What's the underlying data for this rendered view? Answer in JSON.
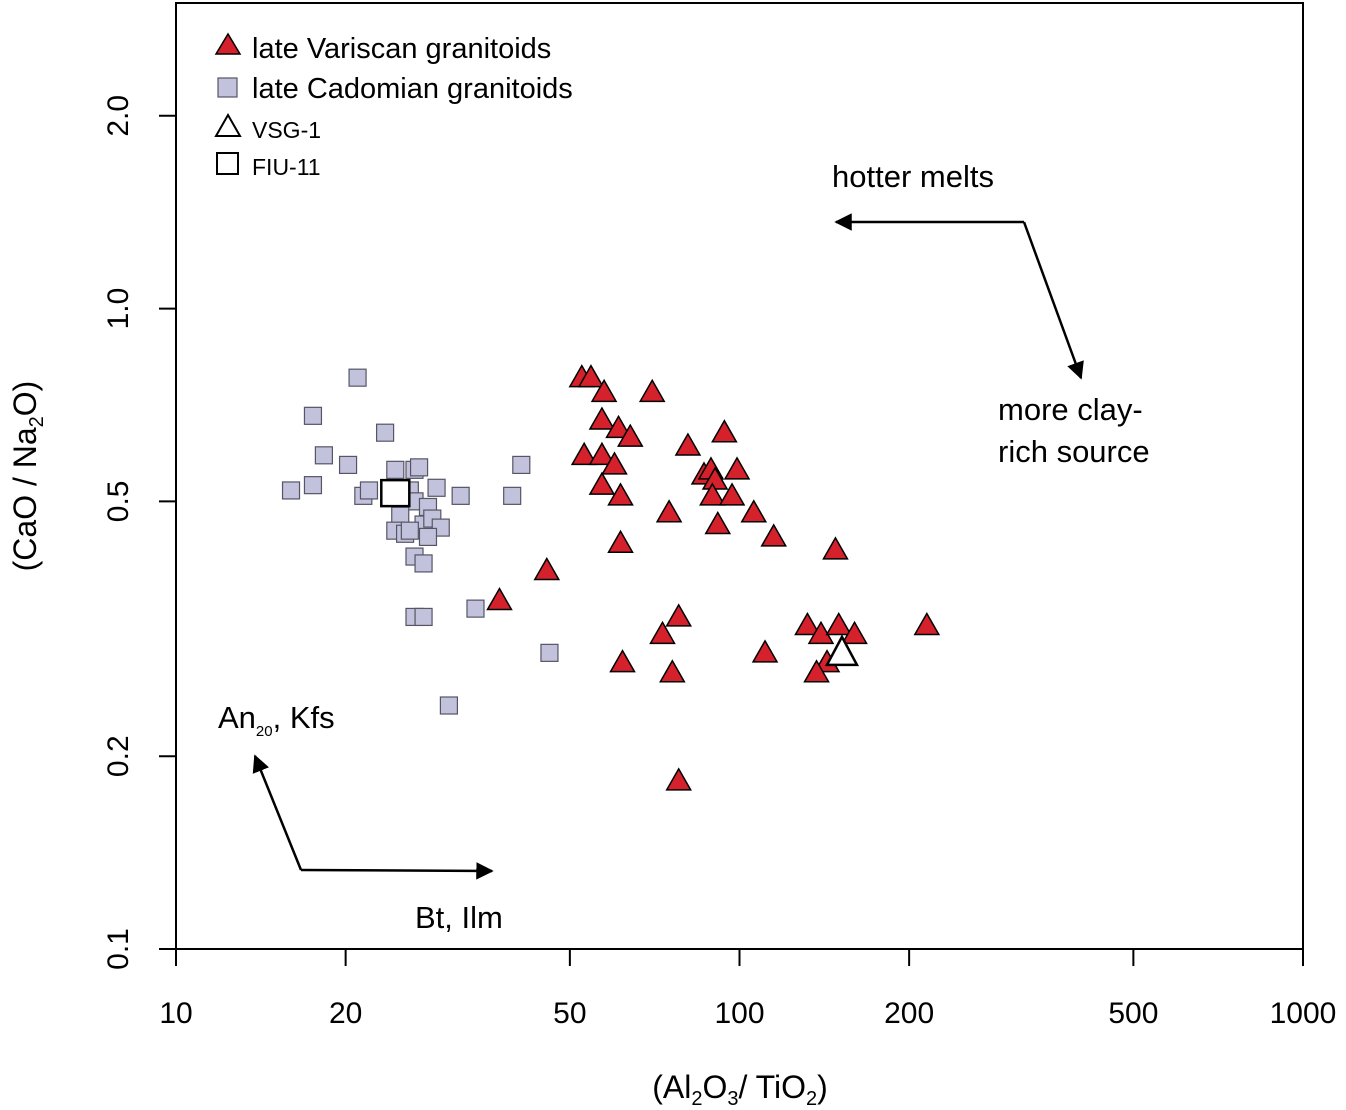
{
  "chart_data": {
    "type": "scatter",
    "xscale": "log",
    "yscale": "log",
    "xlim": [
      10,
      1000
    ],
    "ylim": [
      0.1,
      3.0
    ],
    "x_ticks": [
      {
        "value": 10,
        "label": "10"
      },
      {
        "value": 20,
        "label": "20"
      },
      {
        "value": 50,
        "label": "50"
      },
      {
        "value": 100,
        "label": "100"
      },
      {
        "value": 200,
        "label": "200"
      },
      {
        "value": 500,
        "label": "500"
      },
      {
        "value": 1000,
        "label": "1000"
      }
    ],
    "y_ticks": [
      {
        "value": 0.1,
        "label": "0.1"
      },
      {
        "value": 0.2,
        "label": "0.2"
      },
      {
        "value": 0.5,
        "label": "0.5"
      },
      {
        "value": 1.0,
        "label": "1.0"
      },
      {
        "value": 2.0,
        "label": "2.0"
      }
    ],
    "xlabel": {
      "open": "(Al",
      "s1": "2",
      "mid1": "O",
      "s2": "3",
      "mid2": "/ TiO",
      "s3": "2",
      "close": ")"
    },
    "ylabel": {
      "open": "(CaO / Na",
      "s1": "2",
      "close": "O)"
    },
    "legend": [
      {
        "label": "late Variscan granitoids",
        "marker": "filled-triangle"
      },
      {
        "label": "late Cadomian granitoids",
        "marker": "filled-square"
      },
      {
        "label": "VSG-1",
        "marker": "open-triangle"
      },
      {
        "label": "FIU-11",
        "marker": "open-square"
      }
    ],
    "series": [
      {
        "name": "late Variscan granitoids",
        "marker": "triangle",
        "color": "#d4212b",
        "points": [
          [
            52.5,
            0.78
          ],
          [
            54.5,
            0.78
          ],
          [
            57.5,
            0.74
          ],
          [
            70,
            0.74
          ],
          [
            57,
            0.67
          ],
          [
            61,
            0.65
          ],
          [
            64,
            0.63
          ],
          [
            53,
            0.59
          ],
          [
            57,
            0.59
          ],
          [
            60,
            0.57
          ],
          [
            57,
            0.53
          ],
          [
            61.5,
            0.51
          ],
          [
            75,
            0.48
          ],
          [
            61.5,
            0.43
          ],
          [
            81,
            0.61
          ],
          [
            94,
            0.64
          ],
          [
            86.5,
            0.55
          ],
          [
            89,
            0.56
          ],
          [
            90.5,
            0.54
          ],
          [
            89.5,
            0.51
          ],
          [
            99,
            0.56
          ],
          [
            97,
            0.51
          ],
          [
            91.5,
            0.46
          ],
          [
            106,
            0.48
          ],
          [
            115,
            0.44
          ],
          [
            148,
            0.42
          ],
          [
            45.5,
            0.39
          ],
          [
            37.5,
            0.35
          ],
          [
            78,
            0.33
          ],
          [
            73,
            0.31
          ],
          [
            62,
            0.28
          ],
          [
            76,
            0.27
          ],
          [
            78,
            0.183
          ],
          [
            111,
            0.29
          ],
          [
            132,
            0.32
          ],
          [
            139.5,
            0.31
          ],
          [
            150,
            0.32
          ],
          [
            160,
            0.31
          ],
          [
            143,
            0.28
          ],
          [
            137,
            0.27
          ],
          [
            215,
            0.32
          ]
        ]
      },
      {
        "name": "late Cadomian granitoids",
        "marker": "square",
        "color": "#c2c2dc",
        "points": [
          [
            21,
            0.78
          ],
          [
            17.5,
            0.68
          ],
          [
            23.5,
            0.64
          ],
          [
            18.3,
            0.59
          ],
          [
            20.2,
            0.57
          ],
          [
            24.5,
            0.56
          ],
          [
            26.5,
            0.56
          ],
          [
            27,
            0.565
          ],
          [
            41,
            0.57
          ],
          [
            16,
            0.52
          ],
          [
            17.5,
            0.53
          ],
          [
            21.5,
            0.51
          ],
          [
            22,
            0.52
          ],
          [
            26,
            0.52
          ],
          [
            26.5,
            0.5
          ],
          [
            29,
            0.525
          ],
          [
            32,
            0.51
          ],
          [
            39.5,
            0.51
          ],
          [
            25,
            0.475
          ],
          [
            28,
            0.49
          ],
          [
            27.5,
            0.46
          ],
          [
            28.5,
            0.47
          ],
          [
            29.5,
            0.455
          ],
          [
            24.5,
            0.45
          ],
          [
            25.5,
            0.445
          ],
          [
            26,
            0.45
          ],
          [
            28,
            0.44
          ],
          [
            26.5,
            0.41
          ],
          [
            27.5,
            0.4
          ],
          [
            26.5,
            0.33
          ],
          [
            27.5,
            0.33
          ],
          [
            34,
            0.34
          ],
          [
            46,
            0.29
          ],
          [
            30.5,
            0.24
          ]
        ]
      },
      {
        "name": "VSG-1",
        "marker": "open-triangle",
        "color": "#ffffff",
        "points": [
          [
            152,
            0.29
          ]
        ]
      },
      {
        "name": "FIU-11",
        "marker": "open-square",
        "color": "#ffffff",
        "points": [
          [
            24.5,
            0.515
          ]
        ]
      }
    ],
    "annotations": [
      {
        "id": "hotter",
        "text": "hotter melts"
      },
      {
        "id": "clay1",
        "text": "more clay-"
      },
      {
        "id": "clay2",
        "text": "rich source"
      },
      {
        "id": "an",
        "base": "An",
        "sub": "20",
        "rest": ", Kfs"
      },
      {
        "id": "bt",
        "text": "Bt, Ilm"
      }
    ]
  }
}
